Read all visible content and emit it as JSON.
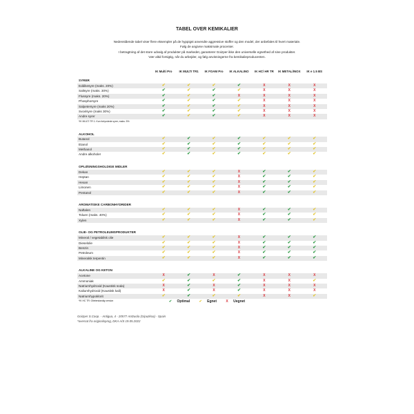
{
  "title": "TABEL OVER KEMIKALIER",
  "intro": [
    "Nedenstående tabel viser flere eksempler på de hyppigst anvendte aggressive stoffer og den model, der anbefales til hvert materiale.",
    "Følg de angivne maksimale procenter.",
    "I betragtning af det store udvalg af produkter på markedet, garanterer Goizper ikke den universelle egnethed af sine produkter.",
    "Vær altid forsigtig, når du arbejder, og følg anvisningerne fra kemikalieproducenten."
  ],
  "columns": [
    "IK Multi Pro",
    "IK MULTI TR1",
    "IK FOAM Pro",
    "IK ALKALINO",
    "IK HC/ HR TR",
    "IK METAL/INOX",
    "IK e 1.5 BS"
  ],
  "symbols": {
    "o": "✔",
    "g": "✔",
    "x": "X"
  },
  "colors": {
    "optimal": "#2e9a45",
    "egnet": "#e2c530",
    "uegnet": "#d8333a"
  },
  "sections": [
    {
      "name": "SYRER",
      "note": "*IK MULTI TR 1: Kun fortyndede syrer, maks. 5%",
      "rows": [
        {
          "label": "Eddikesyre (maks. 20%)",
          "v": "gggoxxx"
        },
        {
          "label": "Saltsyre (maks. 30%)",
          "v": "ogogxxx"
        },
        {
          "label": "Flussyre (maks. 20%)",
          "v": "ogoxxxx"
        },
        {
          "label": "Phosphorsyre",
          "v": "ogogxxx"
        },
        {
          "label": "Salpetersyre (maks 20%)",
          "v": "ogogxxx"
        },
        {
          "label": "Svovlsyre (maks 30%)",
          "v": "ogogxxx"
        },
        {
          "label": "Andre syrer",
          "v": "ogogxxx"
        }
      ]
    },
    {
      "name": "ALKOHOL",
      "rows": [
        {
          "label": "Butanol",
          "v": "gogoggg"
        },
        {
          "label": "Etanol",
          "v": "gogoggg"
        },
        {
          "label": "Methanol",
          "v": "gogoggg"
        },
        {
          "label": "Andre alkoholer",
          "v": "gogoggg"
        }
      ]
    },
    {
      "name": "OPLØSNINGSHOLDIGE MIDLER",
      "rows": [
        {
          "label": "Dekan",
          "v": "gggxoog"
        },
        {
          "label": "Heptan",
          "v": "gggxoog"
        },
        {
          "label": "Hexan",
          "v": "gggxoog"
        },
        {
          "label": "Limonen",
          "v": "gggxoog"
        },
        {
          "label": "Pentanol",
          "v": "gggxoog"
        }
      ]
    },
    {
      "name": "AROMATISKE CARBONHYDRIDER",
      "rows": [
        {
          "label": "Naftalen",
          "v": "gggxoog"
        },
        {
          "label": "Toluen (maks. 40%)",
          "v": "gggxoog"
        },
        {
          "label": "Xylen",
          "v": "gggxoog"
        }
      ]
    },
    {
      "name": "OLIE- OG PETROLEUMSPRODUKTER",
      "rows": [
        {
          "label": "Mineral / vegetabilsk olie",
          "v": "gggxooo"
        },
        {
          "label": "Dieselolie",
          "v": "gggxooo"
        },
        {
          "label": "Benzin",
          "v": "gggxooo"
        },
        {
          "label": "Petroleum",
          "v": "gggxooo"
        },
        {
          "label": "Mineralsk terpentin",
          "v": "gggxooo"
        }
      ]
    },
    {
      "name": "ALKALINE OG KETON",
      "note": "*IK HC TR: Oliebestandig version",
      "rows": [
        {
          "label": "Acetone",
          "v": "xoxoxxx"
        },
        {
          "label": "Ammoniak",
          "v": "gogoxxg"
        },
        {
          "label": "Natriumhydroxid (Kaustisk soda)",
          "v": "xoxoxxx"
        },
        {
          "label": "Kaliumhydroxid (Kaustisk kali)",
          "v": "xoxoxxx"
        },
        {
          "label": "Natriumhypoklorit",
          "v": "goggxxg"
        }
      ]
    }
  ],
  "legend": {
    "optimal": "Optimal",
    "egnet": "Egnet",
    "uegnet": "Uegnet"
  },
  "footer": [
    "Goizper S.Coop. - Antigua, 4 - 20577 Antzuola (Gipuzkoa) - Spain",
    "*oversat fra originalsprog, DKA A/S 19.05.2022"
  ]
}
